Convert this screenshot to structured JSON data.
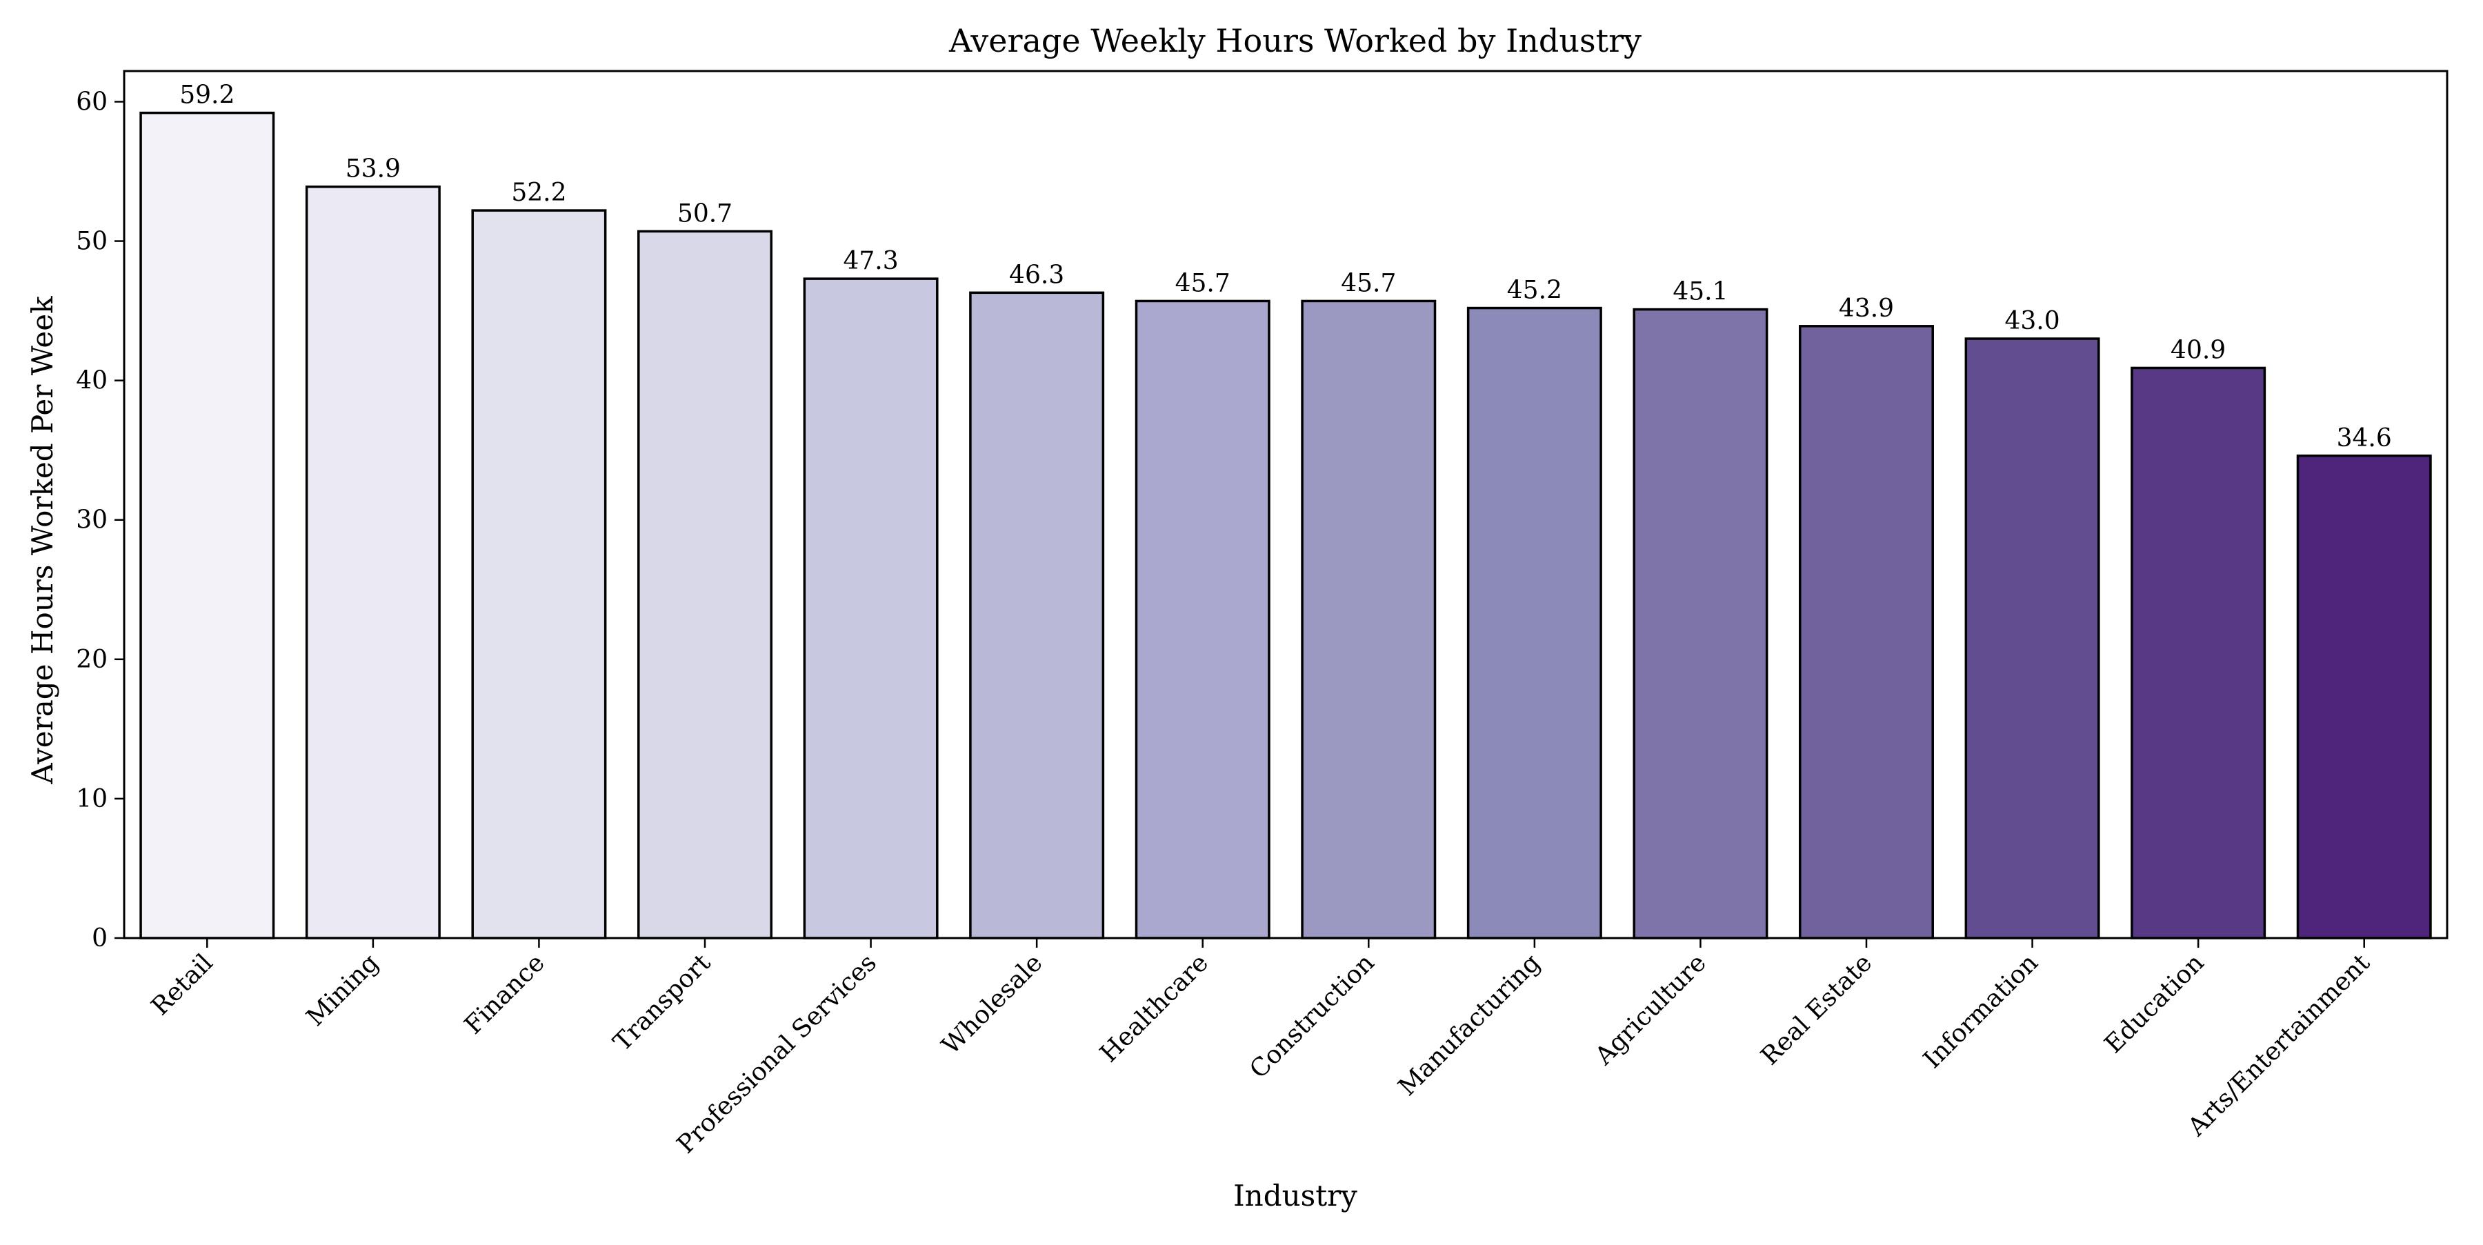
{
  "chart_data": {
    "type": "bar",
    "title": "Average Weekly Hours Worked by Industry",
    "xlabel": "Industry",
    "ylabel": "Average Hours Worked Per Week",
    "categories": [
      "Retail",
      "Mining",
      "Finance",
      "Transport",
      "Professional Services",
      "Wholesale",
      "Healthcare",
      "Construction",
      "Manufacturing",
      "Agriculture",
      "Real Estate",
      "Information",
      "Education",
      "Arts/Entertainment"
    ],
    "values": [
      59.2,
      53.9,
      52.2,
      50.7,
      47.3,
      46.3,
      45.7,
      45.7,
      45.2,
      45.1,
      43.9,
      43.0,
      40.9,
      34.6
    ],
    "value_labels": [
      "59.2",
      "53.9",
      "52.2",
      "50.7",
      "47.3",
      "46.3",
      "45.7",
      "45.7",
      "45.2",
      "45.1",
      "43.9",
      "43.0",
      "40.9",
      "34.6"
    ],
    "yticks": [
      0,
      10,
      20,
      30,
      40,
      50,
      60
    ],
    "ylim": [
      0,
      62.2
    ],
    "grid": false,
    "legend": "none",
    "colors": [
      "#f3f2f8",
      "#ebe9f3",
      "#e2e1ee",
      "#d8d8e9",
      "#c8c8e0",
      "#b9b9d7",
      "#aaa8cf",
      "#9b99c2",
      "#8c8ab8",
      "#7e74a9",
      "#71619d",
      "#634d91",
      "#583986",
      "#4f247b"
    ],
    "edge_color": "#000000"
  }
}
